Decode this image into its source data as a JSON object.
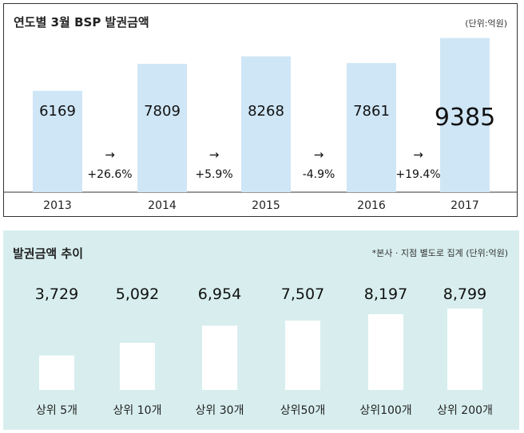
{
  "chart_data": [
    {
      "type": "bar",
      "title": "연도별 3월 BSP 발권금액",
      "unit_note": "(단위:억원)",
      "categories": [
        "2013",
        "2014",
        "2015",
        "2016",
        "2017"
      ],
      "values": [
        6169,
        7809,
        8268,
        7861,
        9385
      ],
      "value_labels": [
        "6169",
        "7809",
        "8268",
        "7861",
        "9385"
      ],
      "growth": [
        {
          "arrow": "→",
          "label": "+26.6%"
        },
        {
          "arrow": "→",
          "label": "+5.9%"
        },
        {
          "arrow": "→",
          "label": "-4.9%"
        },
        {
          "arrow": "→",
          "label": "+19.4%"
        }
      ],
      "bar_color": "#cfe6f6",
      "ylim": [
        0,
        10000
      ],
      "grid": false,
      "legend": "none"
    },
    {
      "type": "bar",
      "title": "발권금액 추이",
      "unit_note": "*본사 · 지점 별도로 집계 (단위:억원)",
      "categories": [
        "상위 5개",
        "상위 10개",
        "상위 30개",
        "상위50개",
        "상위100개",
        "상위 200개"
      ],
      "values": [
        3729,
        5092,
        6954,
        7507,
        8197,
        8799
      ],
      "value_labels": [
        "3,729",
        "5,092",
        "6,954",
        "7,507",
        "8,197",
        "8,799"
      ],
      "bar_color": "#ffffff",
      "background": "#d8eeee",
      "grid": false,
      "legend": "none"
    }
  ]
}
